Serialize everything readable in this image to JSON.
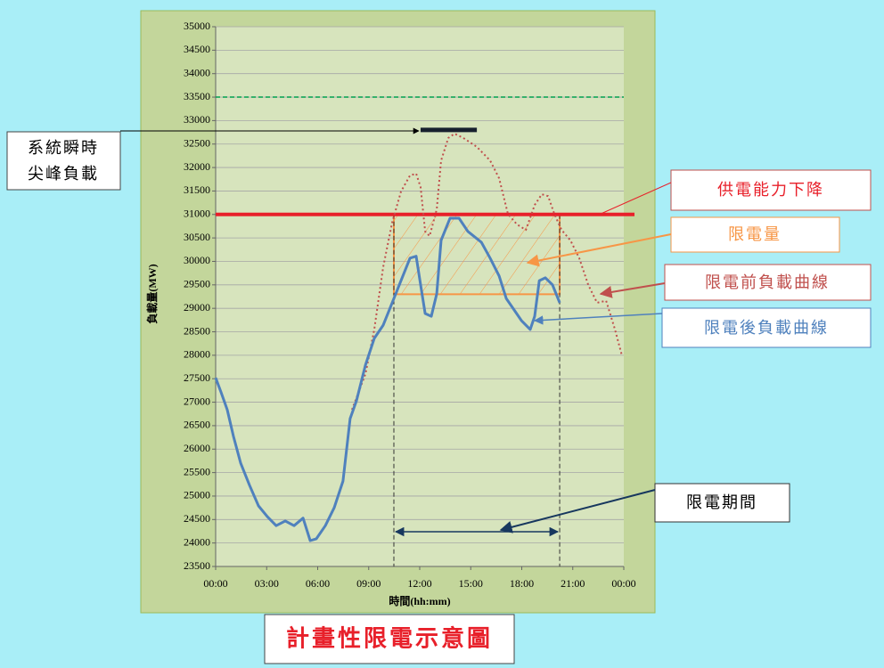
{
  "chart_data": {
    "type": "line",
    "title": "計畫性限電示意圖",
    "xlabel": "時間(hh:mm)",
    "ylabel": "負載量(MW)",
    "xlim": [
      0,
      24
    ],
    "xticks": [
      {
        "value": 0,
        "label": "00:00"
      },
      {
        "value": 3,
        "label": "03:00"
      },
      {
        "value": 6,
        "label": "06:00"
      },
      {
        "value": 9,
        "label": "09:00"
      },
      {
        "value": 12,
        "label": "12:00"
      },
      {
        "value": 15,
        "label": "15:00"
      },
      {
        "value": 18,
        "label": "18:00"
      },
      {
        "value": 21,
        "label": "21:00"
      },
      {
        "value": 24,
        "label": "00:00"
      }
    ],
    "ylim": [
      23500,
      35000
    ],
    "yticks": [
      23500,
      24000,
      24500,
      25000,
      25500,
      26000,
      26500,
      27000,
      27500,
      28000,
      28500,
      29000,
      29500,
      30000,
      30500,
      31000,
      31500,
      32000,
      32500,
      33000,
      33500,
      34000,
      34500,
      35000
    ],
    "grid": true,
    "series": [
      {
        "name": "限電前負載曲線",
        "color": "#c0504d",
        "style": "dotted",
        "x": [
          8.02,
          8.81,
          9.33,
          9.85,
          10.38,
          10.9,
          11.43,
          11.79,
          12.05,
          12.32,
          12.58,
          13.0,
          13.26,
          13.68,
          14.05,
          14.57,
          15.36,
          16.14,
          16.67,
          17.19,
          17.71,
          18.24,
          18.76,
          19.18,
          19.55,
          19.92,
          20.34,
          20.86,
          21.38,
          21.91,
          22.43,
          22.96,
          23.48,
          23.9
        ],
        "values": [
          26840,
          27600,
          28550,
          29880,
          30830,
          31490,
          31830,
          31870,
          31580,
          30640,
          30540,
          31110,
          32150,
          32630,
          32720,
          32630,
          32440,
          32150,
          31770,
          31010,
          30790,
          30670,
          31200,
          31430,
          31390,
          31010,
          30670,
          30450,
          30070,
          29500,
          29120,
          29160,
          28550,
          27980
        ]
      },
      {
        "name": "限電後負載曲線",
        "color": "#4f81bd",
        "style": "solid",
        "x": [
          0,
          0.31,
          0.68,
          1.05,
          1.47,
          1.99,
          2.52,
          3.04,
          3.56,
          4.09,
          4.61,
          5.14,
          5.56,
          5.92,
          6.45,
          6.97,
          7.49,
          7.91,
          8.28,
          8.81,
          9.33,
          9.85,
          10.38,
          10.9,
          11.43,
          11.79,
          12.05,
          12.32,
          12.68,
          13.0,
          13.26,
          13.78,
          14.31,
          14.83,
          15.62,
          16.14,
          16.67,
          17.09,
          17.45,
          17.98,
          18.5,
          18.76,
          19.03,
          19.39,
          19.81,
          20.23
        ],
        "values": [
          27520,
          27220,
          26840,
          26270,
          25700,
          25230,
          24790,
          24560,
          24370,
          24470,
          24370,
          24530,
          24050,
          24090,
          24370,
          24750,
          25320,
          26650,
          27030,
          27790,
          28360,
          28640,
          29120,
          29590,
          30070,
          30110,
          29500,
          28890,
          28830,
          29310,
          30450,
          30920,
          30920,
          30640,
          30410,
          30070,
          29690,
          29210,
          29020,
          28740,
          28550,
          28830,
          29590,
          29650,
          29500,
          29120
        ]
      }
    ],
    "reference_lines": [
      {
        "value": 33500,
        "color": "#00a050",
        "style": "dashed"
      },
      {
        "label": "供電能力下降",
        "value": 31000,
        "color": "#e8202a",
        "style": "solid"
      }
    ],
    "peak": {
      "label": [
        "系統瞬時",
        "尖峰負載"
      ],
      "value": 32800,
      "x": [
        12.05,
        15.36
      ]
    },
    "curtailment": {
      "label": "限電量",
      "ylim": [
        29300,
        31000
      ],
      "xlim": [
        10.48,
        20.23
      ],
      "color": "#f79646"
    },
    "period": {
      "label": "限電期間",
      "x": [
        10.48,
        20.23
      ]
    }
  }
}
